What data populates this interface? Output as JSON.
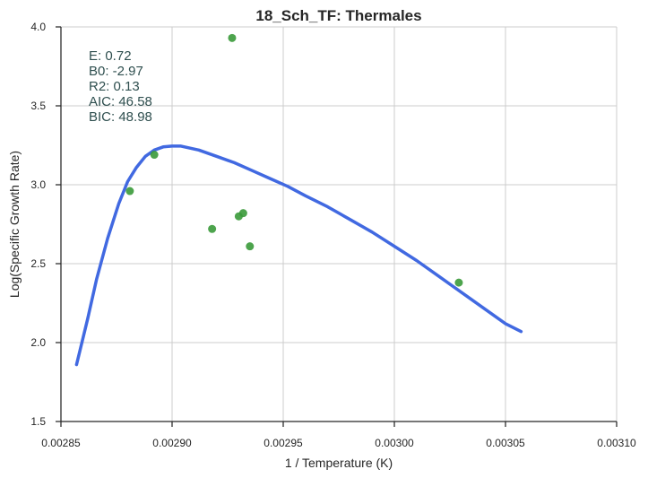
{
  "chart_data": {
    "type": "scatter",
    "title": "18_Sch_TF: Thermales",
    "xlabel": "1 / Temperature (K)",
    "ylabel": "Log(Specific Growth Rate)",
    "xlim": [
      0.00285,
      0.0031
    ],
    "ylim": [
      1.5,
      4.0
    ],
    "x_ticks": [
      0.00285,
      0.0029,
      0.00295,
      0.003,
      0.00305,
      0.0031
    ],
    "x_tick_labels": [
      "0.00285",
      "0.00290",
      "0.00295",
      "0.00300",
      "0.00305",
      "0.00310"
    ],
    "y_ticks": [
      1.5,
      2.0,
      2.5,
      3.0,
      3.5,
      4.0
    ],
    "y_tick_labels": [
      "1.5",
      "2.0",
      "2.5",
      "3.0",
      "3.5",
      "4.0"
    ],
    "grid": true,
    "points": {
      "color": "#3a9a3a",
      "x": [
        0.002881,
        0.002892,
        0.002918,
        0.002927,
        0.00293,
        0.002932,
        0.002935,
        0.003029
      ],
      "y": [
        2.96,
        3.19,
        2.72,
        3.93,
        2.8,
        2.82,
        2.61,
        2.38
      ]
    },
    "fit": {
      "color": "#4169e1",
      "x": [
        0.002857,
        0.002862,
        0.002866,
        0.002871,
        0.002876,
        0.00288,
        0.002884,
        0.002888,
        0.002892,
        0.002896,
        0.0029,
        0.002904,
        0.002912,
        0.00292,
        0.002928,
        0.002936,
        0.002944,
        0.002952,
        0.00296,
        0.00297,
        0.00298,
        0.00299,
        0.003,
        0.00301,
        0.00302,
        0.00303,
        0.00304,
        0.00305,
        0.003057
      ],
      "y": [
        1.86,
        2.15,
        2.4,
        2.66,
        2.88,
        3.02,
        3.11,
        3.18,
        3.22,
        3.24,
        3.245,
        3.245,
        3.22,
        3.18,
        3.14,
        3.09,
        3.04,
        2.99,
        2.93,
        2.86,
        2.78,
        2.7,
        2.61,
        2.52,
        2.42,
        2.32,
        2.22,
        2.12,
        2.07
      ]
    },
    "annotation": {
      "color": "#2f4f4f",
      "lines": [
        "E:  0.72",
        "B0:  -2.97",
        "R2:  0.13",
        "AIC: 46.58",
        "BIC: 48.98"
      ]
    }
  }
}
